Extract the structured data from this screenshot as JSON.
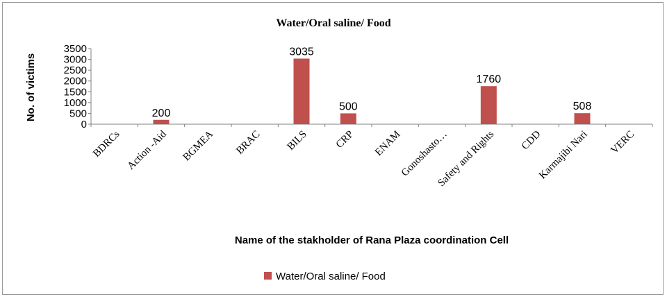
{
  "chart_data": {
    "type": "bar",
    "title": "Water/Oral saline/ Food",
    "xlabel": "Name of the stakholder of Rana Plaza coordination Cell",
    "ylabel": "No. of victims",
    "ylim": [
      0,
      3500
    ],
    "yticks": [
      0,
      500,
      1000,
      1500,
      2000,
      2500,
      3000,
      3500
    ],
    "grid": false,
    "legend": "bottom",
    "categories": [
      "BDRCs",
      "Action -Aid",
      "BGMEA",
      "BRAC",
      "BILS",
      "CRP",
      "ENAM",
      "Gonoshasto…",
      "Safety and Rights",
      "CDD",
      "Karmajibi Nari",
      "VERC"
    ],
    "series": [
      {
        "name": "Water/Oral saline/ Food",
        "color": "#c0504d",
        "values": [
          null,
          200,
          null,
          null,
          3035,
          500,
          null,
          null,
          1760,
          null,
          508,
          null
        ],
        "labels": [
          "",
          "200",
          "",
          "",
          "3035",
          "500",
          "",
          "",
          "1760",
          "",
          "508",
          ""
        ]
      }
    ]
  }
}
